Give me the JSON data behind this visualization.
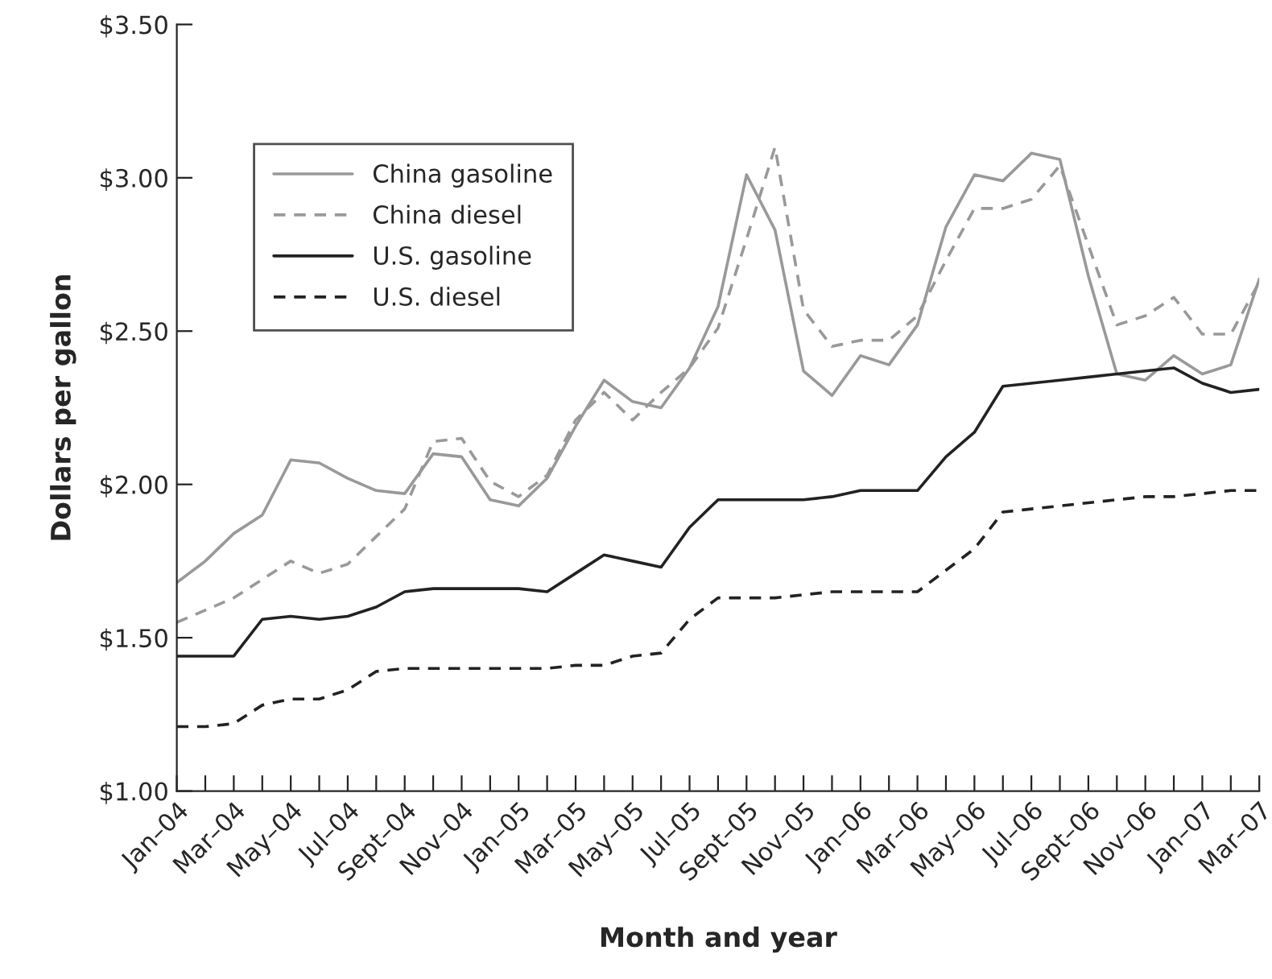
{
  "chart_data": {
    "type": "line",
    "xlabel": "Month and year",
    "ylabel": "Dollars per gallon",
    "categories": [
      "Jan–04",
      null,
      "Mar–04",
      null,
      "May–04",
      null,
      "Jul–04",
      null,
      "Sept–04",
      null,
      "Nov–04",
      null,
      "Jan–05",
      null,
      "Mar–05",
      null,
      "May–05",
      null,
      "Jul–05",
      null,
      "Sept–05",
      null,
      "Nov–05",
      null,
      "Jan–06",
      null,
      "Mar–06",
      null,
      "May–06",
      null,
      "Jul–06",
      null,
      "Sept–06",
      null,
      "Nov–06",
      null,
      "Jan–07",
      null,
      "Mar–07"
    ],
    "series": [
      {
        "name": "China gasoline",
        "color": "#999999",
        "line_style": "solid",
        "values": [
          1.68,
          1.75,
          1.84,
          1.9,
          2.08,
          2.07,
          2.02,
          1.98,
          1.97,
          2.1,
          2.09,
          1.95,
          1.93,
          2.02,
          2.19,
          2.34,
          2.27,
          2.25,
          2.38,
          2.58,
          3.01,
          2.83,
          2.37,
          2.29,
          2.42,
          2.39,
          2.52,
          2.84,
          3.01,
          2.99,
          3.08,
          3.06,
          2.68,
          2.36,
          2.34,
          2.42,
          2.36,
          2.39,
          2.67
        ]
      },
      {
        "name": "China diesel",
        "color": "#999999",
        "line_style": "dashed",
        "values": [
          1.55,
          1.59,
          1.63,
          1.69,
          1.75,
          1.71,
          1.74,
          1.83,
          1.92,
          2.14,
          2.15,
          2.01,
          1.96,
          2.03,
          2.21,
          2.3,
          2.21,
          2.3,
          2.38,
          2.51,
          2.8,
          3.1,
          2.57,
          2.45,
          2.47,
          2.47,
          2.55,
          2.73,
          2.9,
          2.9,
          2.93,
          3.04,
          2.78,
          2.52,
          2.55,
          2.61,
          2.49,
          2.49,
          2.66
        ]
      },
      {
        "name": "U.S. gasoline",
        "color": "#222222",
        "line_style": "solid",
        "values": [
          1.44,
          1.44,
          1.44,
          1.56,
          1.57,
          1.56,
          1.57,
          1.6,
          1.65,
          1.66,
          1.66,
          1.66,
          1.66,
          1.65,
          1.71,
          1.77,
          1.75,
          1.73,
          1.86,
          1.95,
          1.95,
          1.95,
          1.95,
          1.96,
          1.98,
          1.98,
          1.98,
          2.09,
          2.17,
          2.32,
          2.33,
          2.34,
          2.35,
          2.36,
          2.37,
          2.38,
          2.33,
          2.3,
          2.31
        ]
      },
      {
        "name": "U.S. diesel",
        "color": "#222222",
        "line_style": "dashed",
        "values": [
          1.21,
          1.21,
          1.22,
          1.28,
          1.3,
          1.3,
          1.33,
          1.39,
          1.4,
          1.4,
          1.4,
          1.4,
          1.4,
          1.4,
          1.41,
          1.41,
          1.44,
          1.45,
          1.56,
          1.63,
          1.63,
          1.63,
          1.64,
          1.65,
          1.65,
          1.65,
          1.65,
          1.72,
          1.79,
          1.91,
          1.92,
          1.93,
          1.94,
          1.95,
          1.96,
          1.96,
          1.97,
          1.98,
          1.98
        ]
      }
    ],
    "ylim": [
      1.0,
      3.5
    ],
    "yticks": [
      {
        "value": 1.0,
        "label": "$1.00"
      },
      {
        "value": 1.5,
        "label": "$1.50"
      },
      {
        "value": 2.0,
        "label": "$2.00"
      },
      {
        "value": 2.5,
        "label": "$2.50"
      },
      {
        "value": 3.0,
        "label": "$3.00"
      },
      {
        "value": 3.5,
        "label": "$3.50"
      }
    ],
    "legend": "top left",
    "grid": false,
    "marker": "none"
  }
}
